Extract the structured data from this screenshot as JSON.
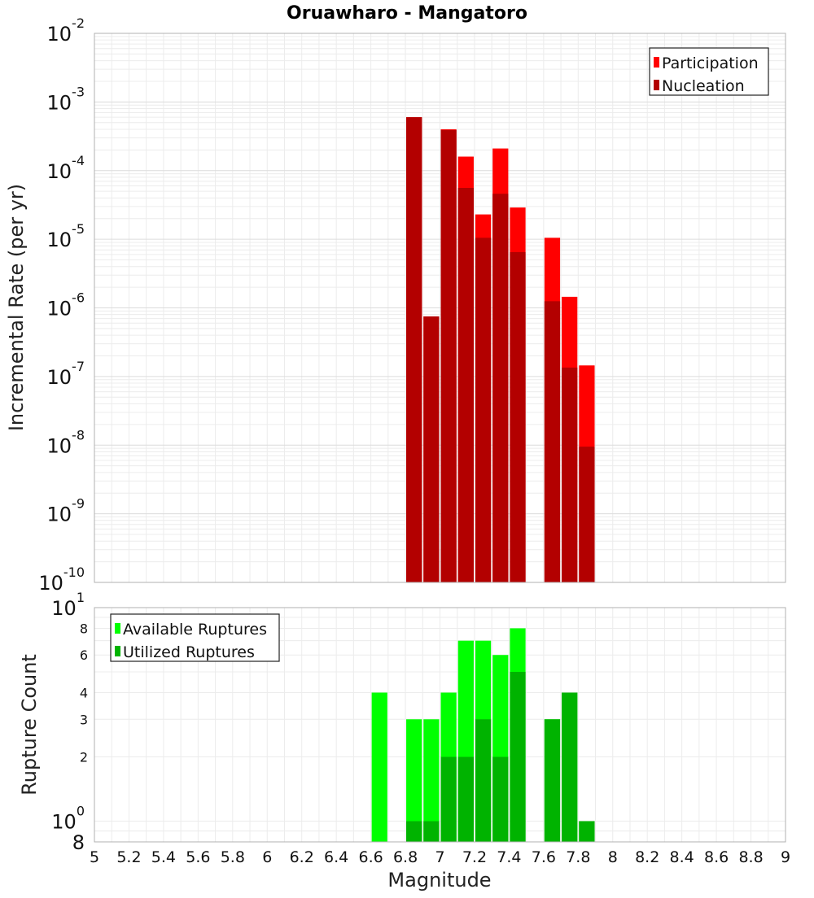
{
  "chart_data": [
    {
      "type": "bar",
      "title": "Oruawharo - Mangatoro",
      "xlabel": "",
      "ylabel": "Incremental Rate (per yr)",
      "yscale": "log",
      "xlim": [
        5,
        9
      ],
      "ylim": [
        1e-10,
        0.01
      ],
      "grid": true,
      "legend_position": "top-right",
      "y_ticks": [
        {
          "value": 1e-10,
          "base": "10",
          "exp": "-10"
        },
        {
          "value": 1e-09,
          "base": "10",
          "exp": "-9"
        },
        {
          "value": 1e-08,
          "base": "10",
          "exp": "-8"
        },
        {
          "value": 1e-07,
          "base": "10",
          "exp": "-7"
        },
        {
          "value": 1e-06,
          "base": "10",
          "exp": "-6"
        },
        {
          "value": 1e-05,
          "base": "10",
          "exp": "-5"
        },
        {
          "value": 0.0001,
          "base": "10",
          "exp": "-4"
        },
        {
          "value": 0.001,
          "base": "10",
          "exp": "-3"
        },
        {
          "value": 0.01,
          "base": "10",
          "exp": "-2"
        }
      ],
      "series": [
        {
          "name": "Participation",
          "color": "#ff0000",
          "x": [
            6.85,
            6.95,
            7.05,
            7.15,
            7.25,
            7.35,
            7.45,
            7.65,
            7.75,
            7.85
          ],
          "values": [
            0.0006,
            7.5e-07,
            0.0004,
            0.00016,
            2.3e-05,
            0.00021,
            2.9e-05,
            1.05e-05,
            1.45e-06,
            1.45e-07
          ]
        },
        {
          "name": "Nucleation",
          "color": "#b30000",
          "x": [
            6.85,
            6.95,
            7.05,
            7.15,
            7.25,
            7.35,
            7.45,
            7.65,
            7.75,
            7.85
          ],
          "values": [
            0.0006,
            7.5e-07,
            0.00039,
            5.6e-05,
            1.05e-05,
            4.6e-05,
            6.5e-06,
            1.25e-06,
            1.35e-07,
            9.5e-09
          ]
        }
      ]
    },
    {
      "type": "bar",
      "title": "",
      "xlabel": "Magnitude",
      "ylabel": "Rupture Count",
      "yscale": "log",
      "xlim": [
        5,
        9
      ],
      "ylim": [
        0.8,
        10
      ],
      "grid": true,
      "legend_position": "top-left",
      "x_ticks": [
        "5",
        "5.2",
        "5.4",
        "5.6",
        "5.8",
        "6",
        "6.2",
        "6.4",
        "6.6",
        "6.8",
        "7",
        "7.2",
        "7.4",
        "7.6",
        "7.8",
        "8",
        "8.2",
        "8.4",
        "8.6",
        "8.8",
        "9"
      ],
      "y_ticks": [
        {
          "value": 0.8,
          "label": "8",
          "exp": "",
          "major": true
        },
        {
          "value": 1,
          "label": "10",
          "exp": "0",
          "major": true
        },
        {
          "value": 2,
          "label": "2",
          "exp": "",
          "major": false
        },
        {
          "value": 3,
          "label": "3",
          "exp": "",
          "major": false
        },
        {
          "value": 4,
          "label": "4",
          "exp": "",
          "major": false
        },
        {
          "value": 6,
          "label": "6",
          "exp": "",
          "major": false
        },
        {
          "value": 8,
          "label": "8",
          "exp": "",
          "major": false
        },
        {
          "value": 10,
          "label": "10",
          "exp": "1",
          "major": true
        }
      ],
      "series": [
        {
          "name": "Available Ruptures",
          "color": "#00ff00",
          "x": [
            6.65,
            6.85,
            6.95,
            7.05,
            7.15,
            7.25,
            7.35,
            7.45,
            7.65,
            7.75,
            7.85
          ],
          "values": [
            4,
            3,
            3,
            4,
            7,
            7,
            6,
            8,
            3,
            4,
            1
          ]
        },
        {
          "name": "Utilized Ruptures",
          "color": "#00b300",
          "x": [
            6.65,
            6.85,
            6.95,
            7.05,
            7.15,
            7.25,
            7.35,
            7.45,
            7.65,
            7.75,
            7.85
          ],
          "values": [
            0,
            1,
            1,
            2,
            2,
            3,
            2,
            5,
            3,
            4,
            1
          ]
        }
      ]
    }
  ]
}
